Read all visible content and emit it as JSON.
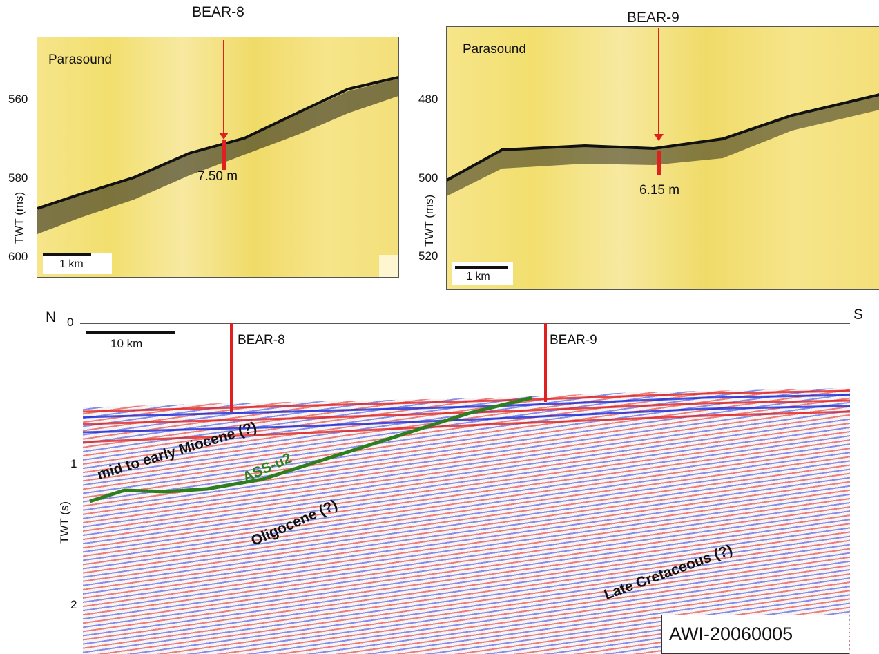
{
  "left_panel": {
    "well": "BEAR-8",
    "title": "Parasound",
    "ticks": [
      "560",
      "580",
      "600"
    ],
    "axis_label": "TWT (ms)",
    "depth_label": "7.50 m",
    "scale_label": "1 km"
  },
  "right_panel": {
    "well": "BEAR-9",
    "title": "Parasound",
    "ticks": [
      "480",
      "500",
      "520"
    ],
    "axis_label": "TWT (ms)",
    "depth_label": "6.15 m",
    "scale_label": "1 km"
  },
  "profile": {
    "north": "N",
    "south": "S",
    "ticks": [
      "0",
      "1",
      "2"
    ],
    "axis_label": "TWT (s)",
    "scale_label": "10 km",
    "well_1": "BEAR-8",
    "well_2": "BEAR-9",
    "units": {
      "miocene": "mid to early Miocene (?)",
      "horizon": "ASS-u2",
      "oligocene": "Oligocene (?)",
      "cretaceous": "Late Cretaceous (?)"
    },
    "line_id": "AWI-20060005"
  },
  "colors": {
    "well_marker": "#e02020",
    "horizon": "#2e7d1f",
    "seismic_positive": "#e02020",
    "seismic_negative": "#1a28d8",
    "parasound": "#f3e07a"
  }
}
